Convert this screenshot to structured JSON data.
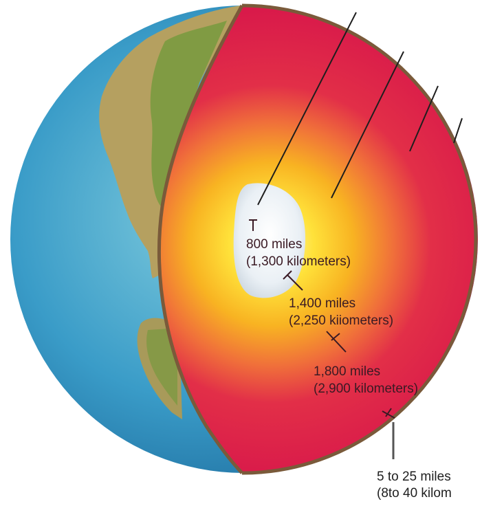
{
  "labels": {
    "inner_core": {
      "miles": "800 miles",
      "km": "(1,300 kilometers)"
    },
    "outer_core": {
      "miles": "1,400 miles",
      "km": "(2,250 kiiometers)"
    },
    "mantle": {
      "miles": "1,800 miles",
      "km": "(2,900 kilometers)"
    },
    "crust": {
      "miles": "5 to 25 miles",
      "km": "(8to 40 kilom"
    }
  },
  "colors": {
    "ocean": "#3a9cc8",
    "land": "#b5a060",
    "mantle": "#e0204a",
    "outer_core": "#f5b020",
    "inner_core": "#eef2f6",
    "crust": "#7a5a3a"
  }
}
